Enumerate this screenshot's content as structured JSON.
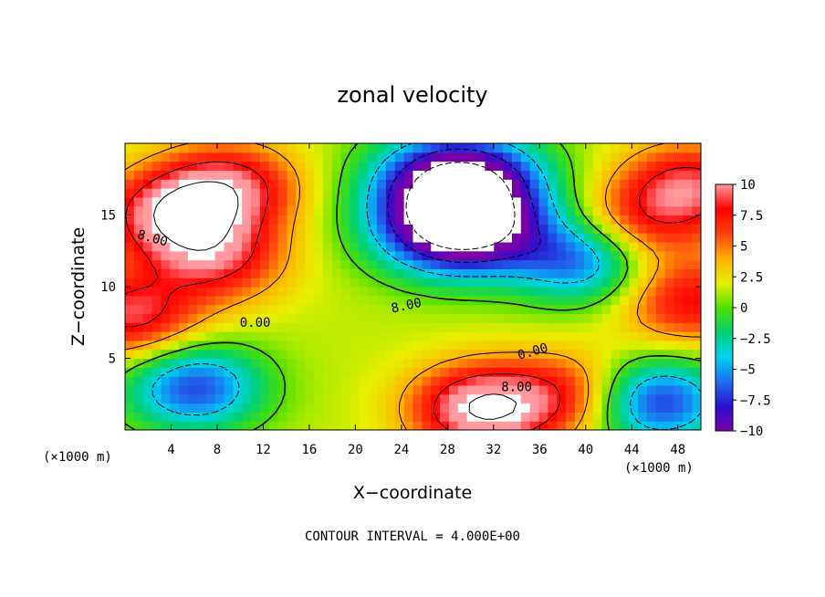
{
  "chart_data": {
    "type": "heatmap",
    "title": "zonal velocity",
    "xlabel": "X−coordinate",
    "ylabel": "Z−coordinate",
    "x_unit_label": "(×1000 m)",
    "z_unit_label": "(×1000 m)",
    "xlim": [
      0,
      50
    ],
    "ylim": [
      0,
      20
    ],
    "x_ticks": [
      4,
      8,
      12,
      16,
      20,
      24,
      28,
      32,
      36,
      40,
      44,
      48
    ],
    "y_ticks": [
      5,
      10,
      15
    ],
    "colorbar": {
      "min": -10,
      "max": 10,
      "ticks": [
        10,
        7.5,
        5,
        2.5,
        0,
        -2.5,
        -5,
        -7.5,
        -10
      ],
      "tick_labels": [
        "10",
        "7.5",
        "5",
        "2.5",
        "0",
        "−2.5",
        "−5",
        "−7.5",
        "−10"
      ],
      "colors": [
        "#7a00a8",
        "#2a10d0",
        "#1e6ef0",
        "#00d2f0",
        "#00d070",
        "#50e000",
        "#e8f000",
        "#ffb000",
        "#ff4010",
        "#ff0000",
        "#ff9aa0"
      ]
    },
    "contour_labels": [
      "8.00",
      "0.00",
      "8.00",
      "0.00",
      "8.00"
    ],
    "contour_interval_text": "CONTOUR INTERVAL = 4.000E+00",
    "field_features": [
      {
        "kind": "jet",
        "x": 4,
        "z": 15,
        "value": 10
      },
      {
        "kind": "jet",
        "x": 8,
        "z": 12,
        "value": 8
      },
      {
        "kind": "jet",
        "x": 9,
        "z": 17,
        "value": 9
      },
      {
        "kind": "jet",
        "x": 0.5,
        "z": 8,
        "value": 9
      },
      {
        "kind": "core",
        "x": 29,
        "z": 14,
        "value": -13
      },
      {
        "kind": "core",
        "x": 29,
        "z": 17.5,
        "value": -12
      },
      {
        "kind": "low",
        "x": 40,
        "z": 12,
        "value": -7
      },
      {
        "kind": "low",
        "x": 6,
        "z": 3,
        "value": -7
      },
      {
        "kind": "low",
        "x": 46,
        "z": 2,
        "value": -8
      },
      {
        "kind": "jet",
        "x": 31,
        "z": 1.5,
        "value": 12
      },
      {
        "kind": "jet",
        "x": 39,
        "z": 2.5,
        "value": 7
      },
      {
        "kind": "jet",
        "x": 44,
        "z": 14,
        "value": 7
      },
      {
        "kind": "jet",
        "x": 49,
        "z": 17,
        "value": 9
      },
      {
        "kind": "jet",
        "x": 49,
        "z": 9,
        "value": 8
      }
    ]
  }
}
